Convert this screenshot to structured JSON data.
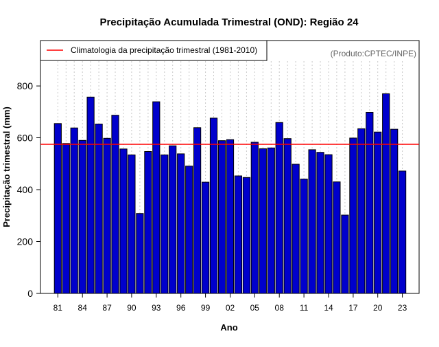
{
  "chart_data": {
    "type": "bar",
    "title": "Precipitação Acumulada Trimestral (OND): Região 24",
    "xlabel": "Ano",
    "ylabel": "Precipitação trimestral (mm)",
    "ylim": [
      0,
      975
    ],
    "yticks": [
      0,
      200,
      400,
      600,
      800
    ],
    "grid": "vertical dotted",
    "legend": {
      "position": "top-left",
      "entries": [
        {
          "label": "Climatologia da precipitação trimestral (1981-2010)",
          "color": "#ff0000"
        }
      ]
    },
    "credit": "(Produto:CPTEC/INPE)",
    "climatology": 575,
    "bar_color": "#0000cc",
    "categories": [
      "1981",
      "1982",
      "1983",
      "1984",
      "1985",
      "1986",
      "1987",
      "1988",
      "1989",
      "1990",
      "1991",
      "1992",
      "1993",
      "1994",
      "1995",
      "1996",
      "1997",
      "1998",
      "1999",
      "2000",
      "2001",
      "2002",
      "2003",
      "2004",
      "2005",
      "2006",
      "2007",
      "2008",
      "2009",
      "2010",
      "2011",
      "2012",
      "2013",
      "2014",
      "2015",
      "2016",
      "2017",
      "2018",
      "2019",
      "2020",
      "2021",
      "2022",
      "2023"
    ],
    "values": [
      655,
      578,
      638,
      590,
      757,
      653,
      598,
      687,
      557,
      534,
      308,
      547,
      739,
      534,
      569,
      538,
      491,
      639,
      429,
      676,
      589,
      593,
      453,
      447,
      583,
      558,
      561,
      659,
      597,
      498,
      441,
      554,
      544,
      535,
      430,
      302,
      599,
      635,
      698,
      622,
      770,
      633,
      472
    ],
    "tick_labels": [
      "81",
      "84",
      "87",
      "90",
      "93",
      "96",
      "99",
      "02",
      "05",
      "08",
      "11",
      "14",
      "17",
      "20",
      "23"
    ]
  }
}
